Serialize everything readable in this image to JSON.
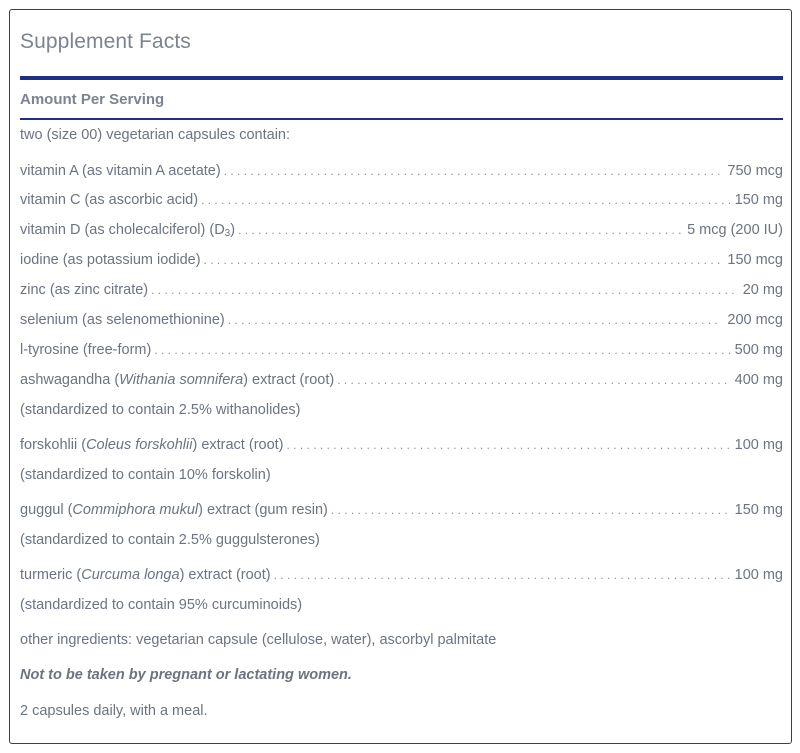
{
  "title": "Supplement Facts",
  "amount_header": "Amount Per Serving",
  "serving_text": "two (size 00) vegetarian capsules contain:",
  "nutrients": [
    {
      "label": "vitamin A (as vitamin A acetate)",
      "amount": "750 mcg"
    },
    {
      "label": "vitamin C (as ascorbic acid)",
      "amount": "150 mg"
    },
    {
      "label_pre": "vitamin D (as cholecalciferol) (D",
      "label_sub": "3",
      "label_post": ")",
      "amount": "5 mcg (200 IU)"
    },
    {
      "label": "iodine (as potassium iodide)",
      "amount": "150 mcg"
    },
    {
      "label": "zinc (as zinc citrate) ",
      "amount": "20 mg"
    },
    {
      "label": "selenium (as selenomethionine) ",
      "amount": "200 mcg"
    },
    {
      "label": "l-tyrosine (free-form)",
      "amount": "500 mg"
    },
    {
      "pre": "ashwagandha (",
      "italic": "Withania somnifera",
      "post": ") extract (root)",
      "amount": "400 mg",
      "note": "(standardized to contain 2.5% withanolides)"
    },
    {
      "pre": "forskohlii (",
      "italic": "Coleus forskohlii",
      "post": ") extract (root)",
      "amount": "100 mg",
      "note": "(standardized to contain 10% forskolin)"
    },
    {
      "pre": "guggul (",
      "italic": "Commiphora mukul",
      "post": ") extract (gum resin)",
      "amount": "150 mg",
      "note": "(standardized to contain 2.5% guggulsterones)"
    },
    {
      "pre": "turmeric (",
      "italic": "Curcuma longa",
      "post": ") extract (root)",
      "amount": "100 mg",
      "note": "(standardized to contain 95% curcuminoids)"
    }
  ],
  "other_ingredients": "other ingredients: vegetarian capsule (cellulose, water), ascorbyl palmitate",
  "warning": "Not to be taken by pregnant or lactating women.",
  "directions": "2 capsules daily, with a meal.",
  "colors": {
    "border": "#2a3b8f",
    "rule": "#1f2f86",
    "text": "#6b7480"
  }
}
